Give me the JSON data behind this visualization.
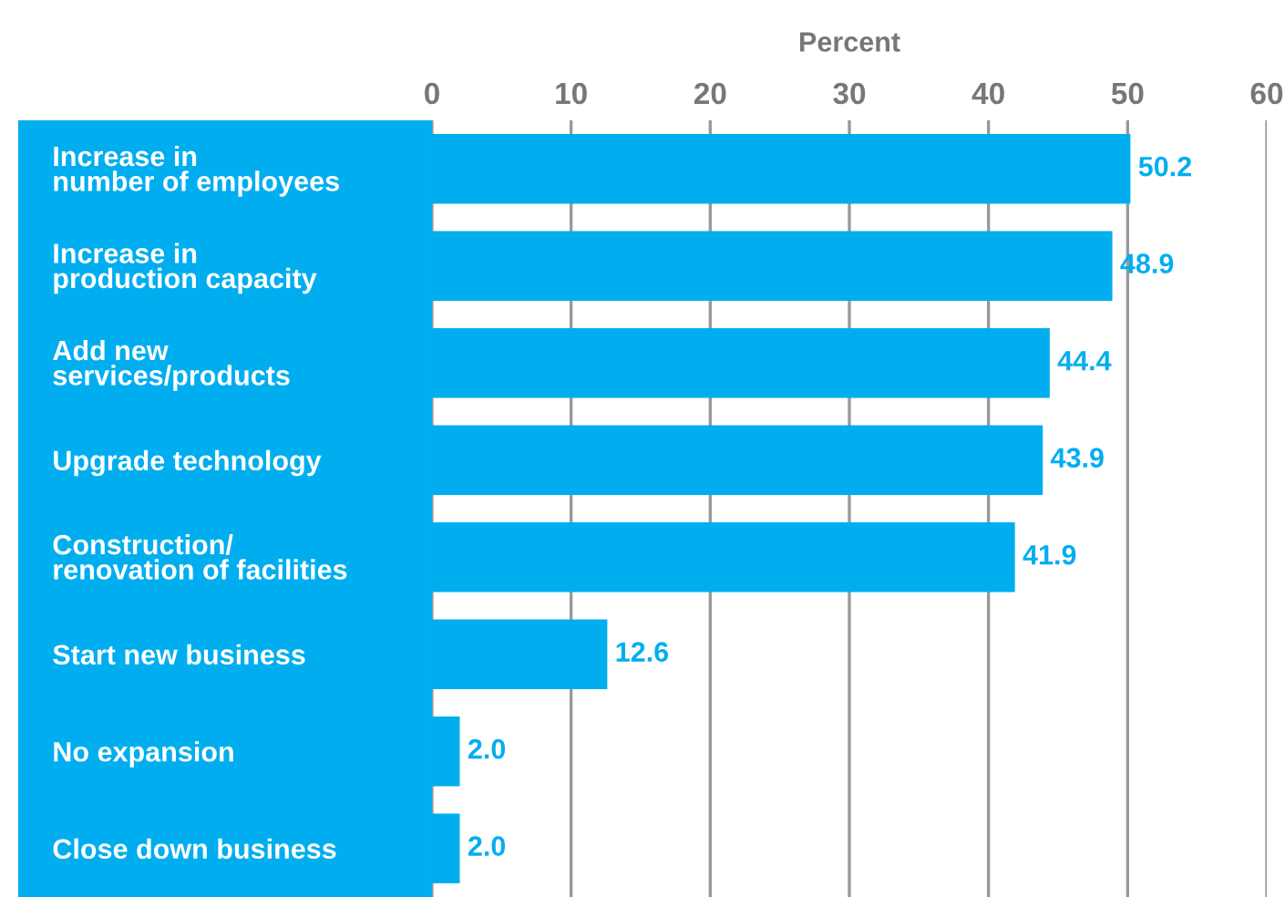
{
  "chart_data": {
    "type": "bar",
    "orientation": "horizontal",
    "xlabel": "Percent",
    "categories": [
      "Increase in\nnumber of employees",
      "Increase in\nproduction capacity",
      "Add new\nservices/products",
      "Upgrade technology",
      "Construction/\nrenovation of facilities",
      "Start new business",
      "No expansion",
      "Close down business"
    ],
    "values": [
      50.2,
      48.9,
      44.4,
      43.9,
      41.9,
      12.6,
      2.0,
      2.0
    ],
    "value_labels": [
      "50.2",
      "48.9",
      "44.4",
      "43.9",
      "41.9",
      "12.6",
      "2.0",
      "2.0"
    ],
    "color": "#00aeef",
    "xlim": [
      0,
      60
    ],
    "xticks": [
      0,
      10,
      20,
      30,
      40,
      50,
      60
    ],
    "grid": "x"
  }
}
